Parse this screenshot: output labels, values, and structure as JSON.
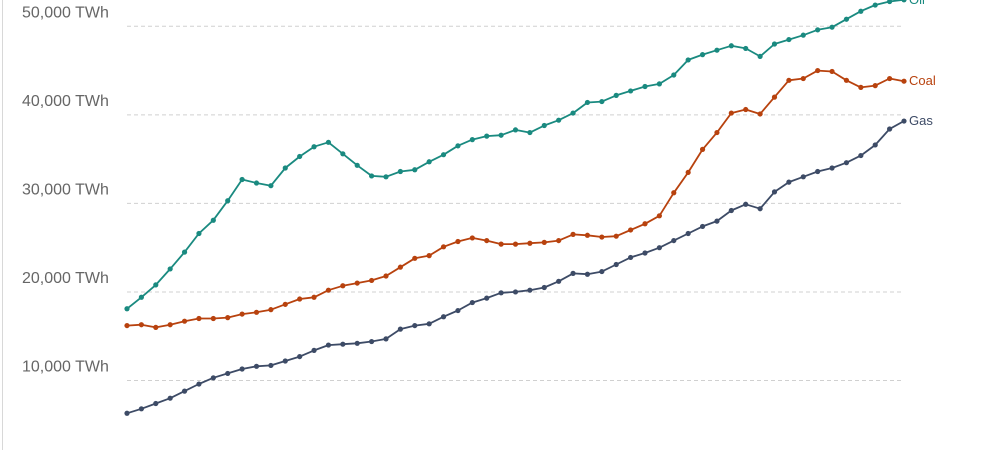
{
  "chart_data": {
    "type": "line",
    "y_ticks": [
      "10,000 TWh",
      "20,000 TWh",
      "30,000 TWh",
      "40,000 TWh",
      "50,000 TWh"
    ],
    "y_tick_values": [
      10000,
      20000,
      30000,
      40000,
      50000
    ],
    "ylim": [
      4500,
      52700
    ],
    "x_count": 55,
    "grid": true,
    "legend": "inline-right",
    "series": [
      {
        "name": "Oil",
        "color": "#1a8a80",
        "values": [
          18100,
          19400,
          20800,
          22600,
          24500,
          26600,
          28100,
          30300,
          32700,
          32300,
          32000,
          34000,
          35300,
          36400,
          36900,
          35600,
          34300,
          33100,
          33000,
          33600,
          33800,
          34700,
          35500,
          36500,
          37200,
          37600,
          37700,
          38300,
          38000,
          38800,
          39400,
          40200,
          41400,
          41500,
          42200,
          42700,
          43200,
          43500,
          44500,
          46200,
          46800,
          47300,
          47800,
          47500,
          46600,
          48000,
          48500,
          49000,
          49600,
          49900,
          50800,
          51700,
          52400,
          52800,
          53000
        ]
      },
      {
        "name": "Coal",
        "color": "#b8420e",
        "values": [
          16200,
          16300,
          16000,
          16300,
          16700,
          17000,
          17000,
          17100,
          17500,
          17700,
          18000,
          18600,
          19200,
          19400,
          20200,
          20700,
          21000,
          21300,
          21800,
          22800,
          23800,
          24100,
          25100,
          25700,
          26100,
          25800,
          25400,
          25400,
          25500,
          25600,
          25800,
          26500,
          26400,
          26200,
          26300,
          27000,
          27700,
          28600,
          31200,
          33500,
          36100,
          38000,
          40200,
          40600,
          40100,
          42000,
          43900,
          44100,
          45000,
          44900,
          43900,
          43100,
          43300,
          44100,
          43800
        ]
      },
      {
        "name": "Gas",
        "color": "#3d4b66",
        "values": [
          6300,
          6800,
          7400,
          8000,
          8800,
          9600,
          10300,
          10800,
          11300,
          11600,
          11700,
          12200,
          12700,
          13400,
          14000,
          14100,
          14200,
          14400,
          14700,
          15800,
          16200,
          16400,
          17200,
          17900,
          18800,
          19300,
          19900,
          20000,
          20200,
          20500,
          21200,
          22100,
          22000,
          22300,
          23100,
          23900,
          24400,
          25000,
          25800,
          26600,
          27400,
          28000,
          29200,
          29900,
          29400,
          31300,
          32400,
          33000,
          33600,
          34000,
          34600,
          35400,
          36600,
          38400,
          39300
        ]
      }
    ]
  }
}
